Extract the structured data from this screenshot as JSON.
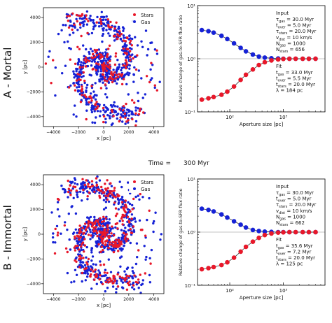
{
  "time_label": {
    "prefix": "Time =",
    "value": "300 Myr"
  },
  "chart_data": [
    {
      "id": "A",
      "type": "scatter",
      "row_label": "A - Mortal",
      "xlabel": "x [pc]",
      "ylabel": "y [pc]",
      "xlim": [
        -4800,
        4800
      ],
      "ylim": [
        -4800,
        4800
      ],
      "xticks": [
        -4000,
        -2000,
        0,
        2000,
        4000
      ],
      "yticks": [
        -4000,
        -2000,
        0,
        2000,
        4000
      ],
      "legend_position": "top-right",
      "series": [
        {
          "name": "Stars",
          "color": "#e8182a",
          "n": 230
        },
        {
          "name": "Gas",
          "color": "#1622d6",
          "n": 656
        }
      ],
      "colors": {
        "stars": "#e8182a",
        "gas": "#1622d6"
      }
    },
    {
      "id": "A",
      "type": "line",
      "xlabel": "Aperture size [pc]",
      "ylabel": "Relative change of gas-to-SFR flux ratio",
      "x_scale": "log",
      "y_scale": "log",
      "xlim": [
        25,
        6000
      ],
      "ylim": [
        0.1,
        10
      ],
      "xticks": [
        {
          "value": 100,
          "label": "10²"
        },
        {
          "value": 1000,
          "label": "10³"
        }
      ],
      "yticks": [
        {
          "value": 0.1,
          "label": "10⁻¹"
        },
        {
          "value": 1,
          "label": "10⁰"
        },
        {
          "value": 10,
          "label": "10¹"
        }
      ],
      "x": [
        30,
        40,
        50,
        70,
        90,
        120,
        160,
        200,
        270,
        350,
        450,
        600,
        800,
        1000,
        1300,
        1700,
        2300,
        3000,
        4000
      ],
      "series": [
        {
          "name": "gas",
          "color": "#1622d6",
          "y": [
            3.45,
            3.3,
            3.1,
            2.7,
            2.35,
            1.95,
            1.6,
            1.38,
            1.2,
            1.1,
            1.05,
            1.02,
            1.01,
            1.0,
            1.0,
            1.0,
            1.0,
            1.0,
            1.0
          ]
        },
        {
          "name": "stars",
          "color": "#e8182a",
          "y": [
            0.17,
            0.18,
            0.19,
            0.21,
            0.24,
            0.3,
            0.4,
            0.5,
            0.63,
            0.76,
            0.86,
            0.93,
            0.97,
            0.99,
            1.0,
            1.0,
            1.0,
            1.0,
            1.0
          ]
        }
      ],
      "input_block": {
        "title": "Input",
        "lines": [
          "τ_gas = 30.0 Myr",
          "t_over = 5.0 Myr",
          "τ_stars = 20.0 Myr",
          "v_dist = 10 km/s",
          "N_gas = 1000",
          "N_stars = 656"
        ]
      },
      "fit_block": {
        "title": "Fit",
        "lines": [
          "t_gas = 33.0 Myr",
          "t_over = 5.5 Myr",
          "t_stars = 20.0 Myr",
          "λ = 184 pc"
        ]
      }
    },
    {
      "id": "B",
      "type": "scatter",
      "row_label": "B - Immortal",
      "xlabel": "x [pc]",
      "ylabel": "y [pc]",
      "xlim": [
        -4800,
        4800
      ],
      "ylim": [
        -4800,
        4800
      ],
      "xticks": [
        -4000,
        -2000,
        0,
        2000,
        4000
      ],
      "yticks": [
        -4000,
        -2000,
        0,
        2000,
        4000
      ],
      "legend_position": "top-right",
      "series": [
        {
          "name": "Stars",
          "color": "#e8182a",
          "n": 330
        },
        {
          "name": "Gas",
          "color": "#1622d6",
          "n": 662
        }
      ],
      "colors": {
        "stars": "#e8182a",
        "gas": "#1622d6"
      }
    },
    {
      "id": "B",
      "type": "line",
      "xlabel": "Aperture size [pc]",
      "ylabel": "Relative change of gas-to-SFR flux ratio",
      "x_scale": "log",
      "y_scale": "log",
      "xlim": [
        25,
        6000
      ],
      "ylim": [
        0.1,
        10
      ],
      "xticks": [
        {
          "value": 100,
          "label": "10²"
        },
        {
          "value": 1000,
          "label": "10³"
        }
      ],
      "yticks": [
        {
          "value": 0.1,
          "label": "10⁻¹"
        },
        {
          "value": 1,
          "label": "10⁰"
        },
        {
          "value": 10,
          "label": "10¹"
        }
      ],
      "x": [
        30,
        40,
        50,
        70,
        90,
        120,
        160,
        200,
        270,
        350,
        450,
        600,
        800,
        1000,
        1300,
        1700,
        2300,
        3000,
        4000
      ],
      "series": [
        {
          "name": "gas",
          "color": "#1622d6",
          "y": [
            2.75,
            2.62,
            2.45,
            2.15,
            1.88,
            1.6,
            1.38,
            1.22,
            1.1,
            1.05,
            1.02,
            1.01,
            1.0,
            1.0,
            1.0,
            1.0,
            1.0,
            1.0,
            1.0
          ]
        },
        {
          "name": "stars",
          "color": "#e8182a",
          "y": [
            0.2,
            0.21,
            0.22,
            0.24,
            0.27,
            0.33,
            0.43,
            0.53,
            0.66,
            0.78,
            0.88,
            0.94,
            0.98,
            0.99,
            1.0,
            1.0,
            1.0,
            1.0,
            1.0
          ]
        }
      ],
      "input_block": {
        "title": "Input",
        "lines": [
          "τ_gas = 30.0 Myr",
          "t_over = 5.0 Myr",
          "τ_stars = 20.0 Myr",
          "v_dist = 10 km/s",
          "N_gas = 1000",
          "N_stars = 662"
        ]
      },
      "fit_block": {
        "title": "Fit",
        "lines": [
          "t_gas = 35.6 Myr",
          "t_over = 7.2 Myr",
          "t_stars = 20.0 Myr",
          "λ = 125 pc"
        ]
      }
    }
  ]
}
